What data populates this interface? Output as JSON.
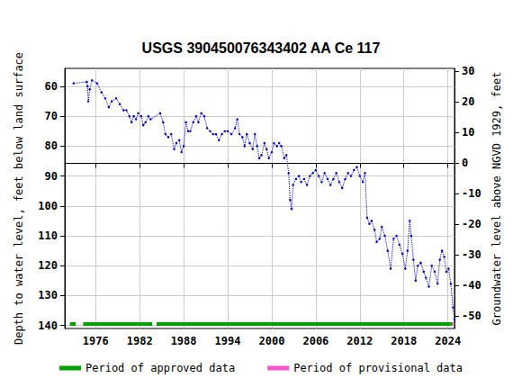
{
  "chart_data": {
    "type": "line",
    "title": "USGS 390450076343402 AA Ce 117",
    "ylabel": "Depth to water level, feet below land surface",
    "y2label": "Groundwater level above NGVD 1929, feet",
    "color": "#0000cc",
    "marker": "circle",
    "line_style": "dotted",
    "grid": true,
    "legend": "bottom",
    "xlim": [
      1971.8,
      2024.9
    ],
    "xticks": [
      1976,
      1982,
      1988,
      1994,
      2000,
      2006,
      2012,
      2018,
      2024
    ],
    "ylim": [
      54,
      141
    ],
    "yticks": [
      60,
      70,
      80,
      90,
      100,
      110,
      120,
      130,
      140
    ],
    "y2lim": [
      -54,
      31
    ],
    "y2ticks": [
      -50,
      -40,
      -30,
      -20,
      -10,
      0,
      10,
      20,
      30
    ],
    "x": [
      1973.0,
      1974.8,
      1974.9,
      1975.0,
      1975.2,
      1975.5,
      1976.2,
      1976.8,
      1977.3,
      1977.8,
      1978.2,
      1978.8,
      1979.3,
      1979.8,
      1980.2,
      1980.6,
      1980.9,
      1981.2,
      1981.5,
      1981.8,
      1982.2,
      1982.5,
      1982.8,
      1983.2,
      1983.5,
      1984.8,
      1985.2,
      1985.5,
      1985.9,
      1986.3,
      1986.7,
      1987.0,
      1987.4,
      1987.7,
      1988.0,
      1988.3,
      1988.6,
      1988.9,
      1989.3,
      1989.7,
      1990.0,
      1990.4,
      1990.8,
      1991.2,
      1991.6,
      1992.0,
      1992.4,
      1992.8,
      1993.2,
      1993.6,
      1994.0,
      1994.5,
      1995.0,
      1995.3,
      1995.6,
      1996.0,
      1996.3,
      1996.6,
      1997.0,
      1997.4,
      1997.7,
      1998.0,
      1998.3,
      1998.6,
      1999.0,
      1999.3,
      1999.6,
      2000.0,
      2000.3,
      2000.7,
      2001.0,
      2001.3,
      2001.7,
      2002.0,
      2002.3,
      2002.5,
      2002.7,
      2002.9,
      2003.3,
      2003.7,
      2004.0,
      2004.4,
      2004.8,
      2005.2,
      2005.6,
      2006.0,
      2006.4,
      2006.8,
      2007.2,
      2007.6,
      2008.0,
      2008.4,
      2008.8,
      2009.2,
      2009.6,
      2010.0,
      2010.4,
      2010.8,
      2011.2,
      2011.6,
      2012.0,
      2012.4,
      2012.7,
      2013.0,
      2013.3,
      2013.6,
      2014.0,
      2014.3,
      2014.7,
      2015.0,
      2015.4,
      2015.8,
      2016.2,
      2016.6,
      2017.0,
      2017.4,
      2017.8,
      2018.2,
      2018.5,
      2018.8,
      2019.0,
      2019.3,
      2019.6,
      2019.9,
      2020.3,
      2020.7,
      2021.0,
      2021.4,
      2021.8,
      2022.2,
      2022.6,
      2022.9,
      2023.2,
      2023.5,
      2023.8,
      2024.1,
      2024.4,
      2024.7,
      2024.9
    ],
    "values": [
      59,
      58.5,
      60,
      65,
      61,
      58,
      59,
      62,
      64,
      67,
      65,
      64,
      66,
      68,
      68,
      70,
      72,
      70,
      71,
      69,
      70,
      73,
      72,
      70,
      71,
      69,
      72,
      76,
      77,
      76,
      81,
      79,
      78,
      82,
      80,
      72,
      75,
      75,
      72,
      70,
      72,
      69,
      70,
      74,
      75,
      76,
      76,
      78,
      76,
      75,
      75,
      76,
      74,
      71,
      76,
      77,
      80,
      76,
      79,
      81,
      76,
      80,
      84,
      83,
      79,
      81,
      84,
      82,
      79,
      80,
      79,
      80,
      84,
      83,
      89,
      98,
      101,
      93,
      91,
      90,
      92,
      91,
      93,
      90,
      89,
      88,
      90,
      92,
      89,
      91,
      93,
      91,
      89,
      92,
      94,
      91,
      89,
      90,
      88,
      87,
      90,
      92,
      89,
      104,
      106,
      105,
      108,
      112,
      111,
      107,
      110,
      115,
      121,
      111,
      110,
      113,
      116,
      121,
      115,
      105,
      110,
      118,
      125,
      120,
      119,
      122,
      124,
      127,
      120,
      122,
      126,
      118,
      115,
      117,
      122,
      121,
      126,
      134,
      138
    ],
    "periods": [
      {
        "name": "Period of approved data",
        "color": "#00a000",
        "ranges": [
          [
            1972.5,
            1973.3
          ],
          [
            1974.3,
            1983.7
          ],
          [
            1984.3,
            2024.6
          ]
        ]
      },
      {
        "name": "Period of provisional data",
        "color": "#ff55cc",
        "ranges": [
          [
            2024.6,
            2024.9
          ]
        ]
      }
    ]
  }
}
